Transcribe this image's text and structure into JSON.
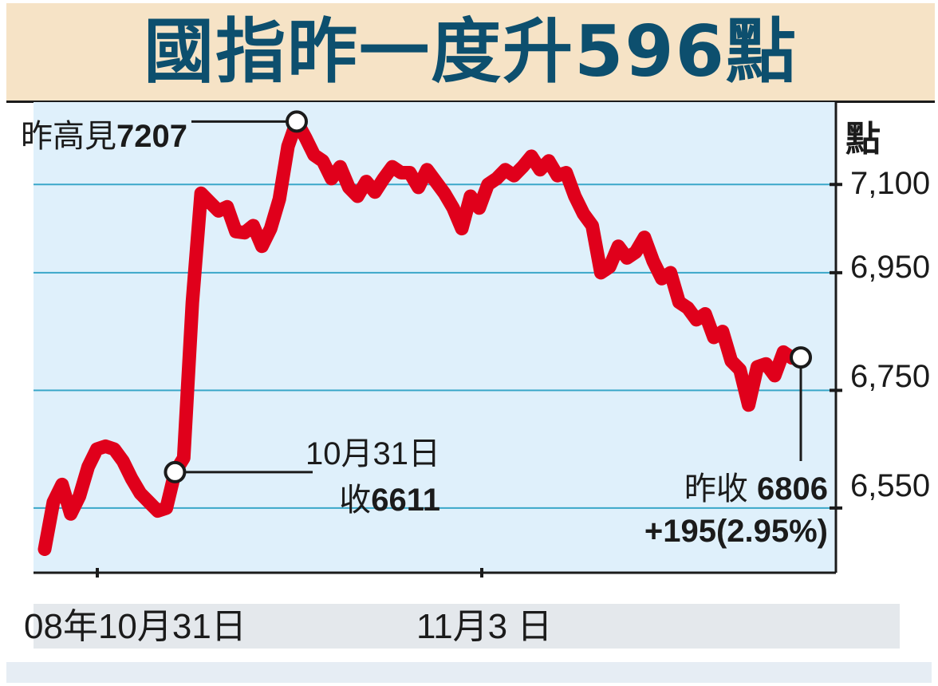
{
  "chart_data": {
    "type": "line",
    "title": "國指昨一度升596點",
    "ylabel": "點",
    "ylim": [
      6440,
      7240
    ],
    "yticks": [
      "7,100",
      "6,950",
      "6,750",
      "6,550"
    ],
    "ytick_values": [
      7100,
      6950,
      6750,
      6550
    ],
    "x_tick_labels": [
      "08年10月31日",
      "11月3 日"
    ],
    "grid": true,
    "series": [
      {
        "color": "#e0001b",
        "values": [
          6480,
          6560,
          6590,
          6540,
          6570,
          6620,
          6650,
          6655,
          6650,
          6630,
          6600,
          6575,
          6560,
          6545,
          6550,
          6611,
          6635,
          6900,
          7085,
          7070,
          7055,
          7062,
          7020,
          7018,
          7030,
          6995,
          7025,
          7075,
          7165,
          7207,
          7180,
          7150,
          7140,
          7110,
          7130,
          7095,
          7080,
          7105,
          7087,
          7110,
          7130,
          7120,
          7120,
          7095,
          7125,
          7105,
          7085,
          7060,
          7025,
          7080,
          7060,
          7100,
          7110,
          7125,
          7115,
          7130,
          7148,
          7125,
          7140,
          7115,
          7120,
          7080,
          7050,
          7030,
          6950,
          6960,
          6995,
          6975,
          6985,
          7010,
          6970,
          6940,
          6950,
          6900,
          6890,
          6870,
          6880,
          6840,
          6850,
          6800,
          6785,
          6725,
          6790,
          6795,
          6775,
          6815,
          6805,
          6806
        ]
      }
    ],
    "annotations": [
      {
        "label": "昨高見",
        "value": "7207"
      },
      {
        "date": "10月31日",
        "label": "收",
        "value": "6611"
      },
      {
        "label": "昨收",
        "value": "6806",
        "change": "+195(2.95%)"
      }
    ],
    "line_color": "#e0001b",
    "plot_background": "#dff0fb",
    "title_color": "#0d4f6e",
    "title_background": "#f6e3c6"
  }
}
